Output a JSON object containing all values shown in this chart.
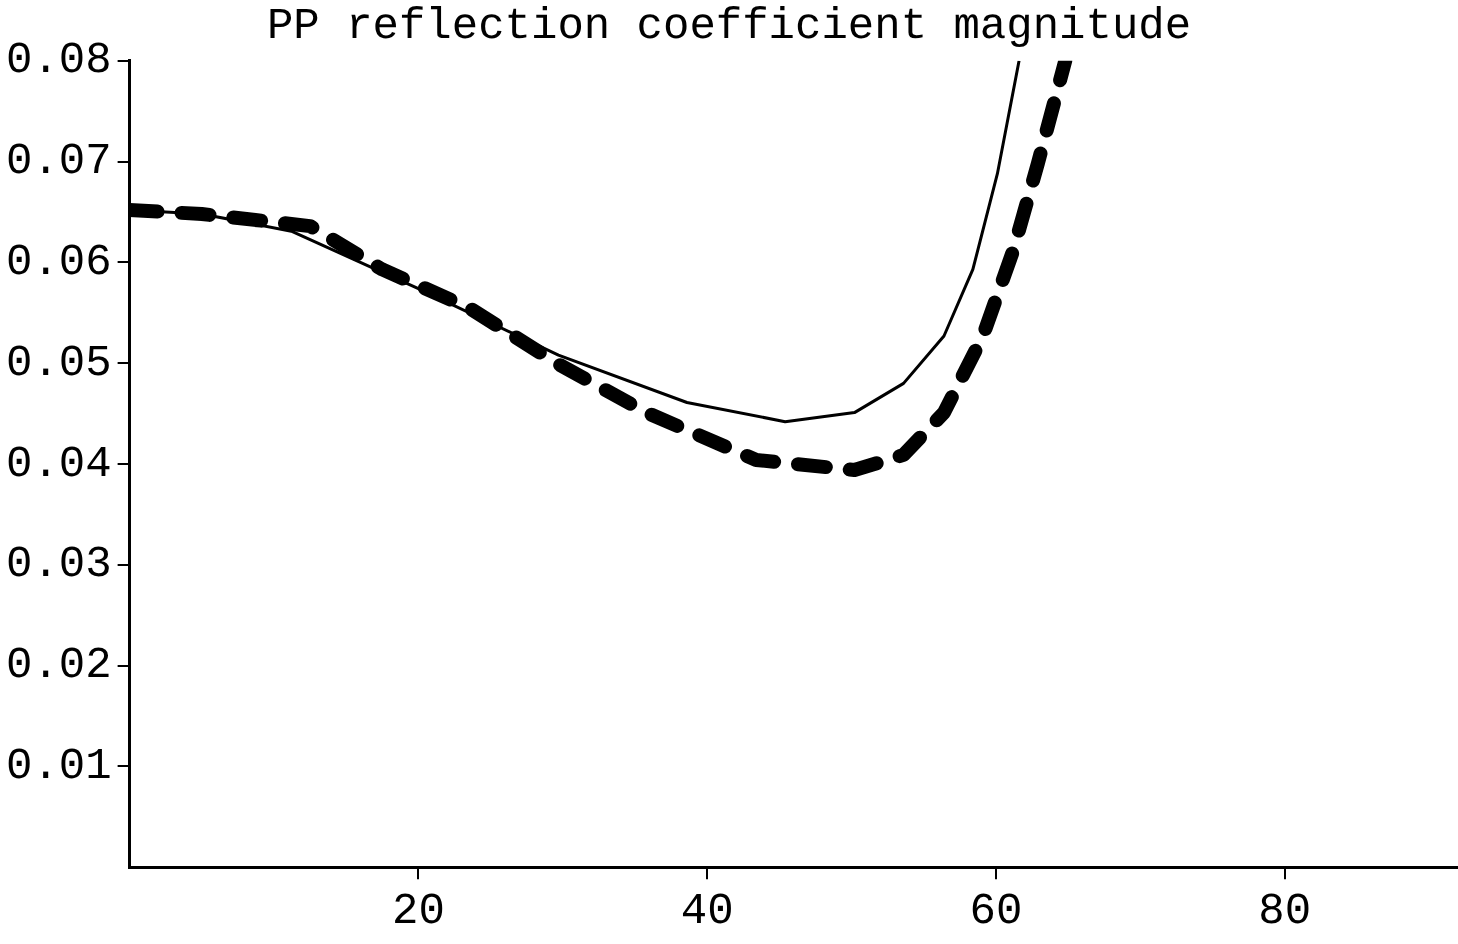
{
  "chart_data": {
    "type": "line",
    "title": "PP reflection coefficient magnitude",
    "xlim": [
      0,
      92
    ],
    "xticks": [
      20,
      40,
      60,
      80
    ],
    "ylim": [
      0,
      0.08
    ],
    "yticks": [
      0.01,
      0.02,
      0.03,
      0.04,
      0.05,
      0.06,
      0.07,
      0.08
    ],
    "grid": false,
    "legend": false,
    "marker": "none",
    "series": [
      {
        "color": "#000000",
        "line_style": "solid",
        "x": [
          0,
          5,
          11.2,
          20,
          29.7,
          38.6,
          45.4,
          50.2,
          53.6,
          56.4,
          58.4,
          60.1,
          61.6
        ],
        "values": [
          0.0652,
          0.0648,
          0.0631,
          0.0574,
          0.0508,
          0.0461,
          0.0442,
          0.0451,
          0.048,
          0.0527,
          0.0593,
          0.0688,
          0.08
        ]
      },
      {
        "color": "#000000",
        "line_style": "dashed",
        "x": [
          0,
          5,
          12.5,
          17.5,
          23.5,
          29.7,
          35.8,
          43.4,
          50.2,
          53.6,
          56.4,
          59.1,
          61.2,
          62.9,
          64.8
        ],
        "values": [
          0.0652,
          0.0648,
          0.0636,
          0.0593,
          0.0555,
          0.0499,
          0.0451,
          0.0404,
          0.0394,
          0.0409,
          0.0451,
          0.0527,
          0.0612,
          0.0698,
          0.08
        ]
      }
    ]
  }
}
